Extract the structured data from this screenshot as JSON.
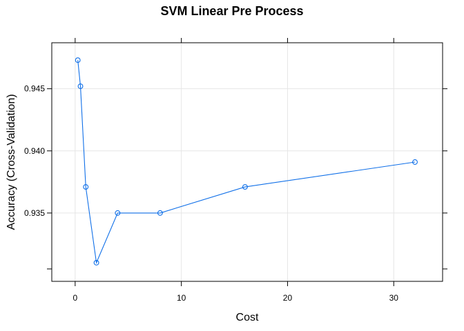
{
  "chart_data": {
    "type": "line",
    "title": "SVM Linear Pre Process",
    "xlabel": "Cost",
    "ylabel": "Accuracy (Cross-Validation)",
    "x": [
      0.25,
      0.5,
      1,
      2,
      4,
      8,
      16,
      32
    ],
    "series": [
      {
        "values": [
          0.9473,
          0.9452,
          0.9371,
          0.931,
          0.935,
          0.935,
          0.9371,
          0.9391
        ]
      }
    ],
    "xlim": [
      -2.2,
      34.6
    ],
    "ylim": [
      0.9295,
      0.9487
    ],
    "xticks": [
      0,
      10,
      20,
      30
    ],
    "yticks": [
      0.935,
      0.94,
      0.945
    ],
    "grid": true,
    "marker": "open-circle",
    "line_color": "#0f6fe8",
    "grid_color": "#e6e6e6"
  }
}
